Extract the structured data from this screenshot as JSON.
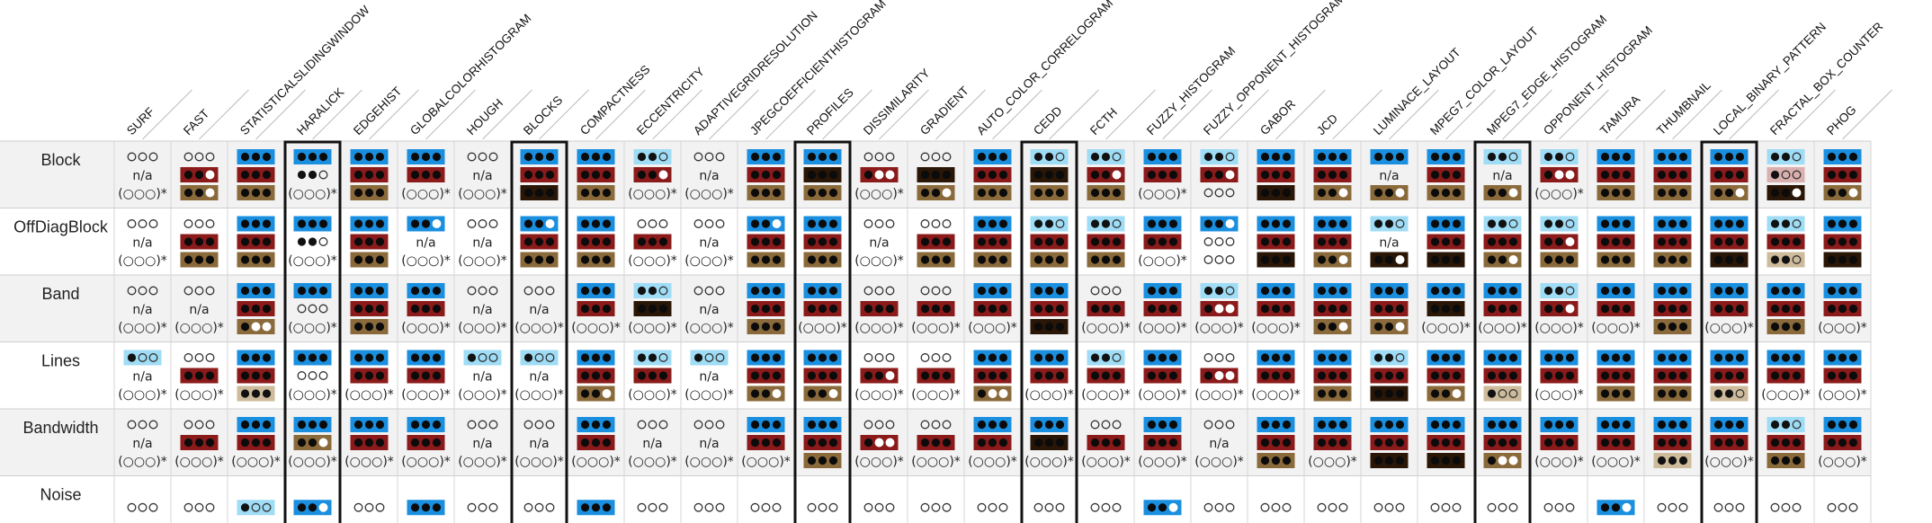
{
  "chart_data": {
    "type": "heatmap",
    "title": "",
    "rows": [
      "Block",
      "OffDiagBlock",
      "Band",
      "Lines",
      "Bandwidth",
      "Noise"
    ],
    "columns": [
      "SURF",
      "FAST",
      "STATISTICALSLIDINGWINDOW",
      "HARALICK",
      "EDGEHIST",
      "GLOBALCOLORHISTOGRAM",
      "HOUGH",
      "BLOCKS",
      "COMPACTNESS",
      "ECCENTRICITY",
      "ADAPTIVEGRIDRESOLUTION",
      "JPEGCOEFFICIENTHISTOGRAM",
      "PROFILES",
      "DISSIMILARITY",
      "GRADIENT",
      "AUTO_COLOR_CORRELOGRAM",
      "CEDD",
      "FCTH",
      "FUZZY_HISTOGRAM",
      "FUZZY_OPPONENT_HISTOGRAM",
      "GABOR",
      "JCD",
      "LUMINACE_LAYOUT",
      "MPEG7_COLOR_LAYOUT",
      "MPEG7_EDGE_HISTOGRAM",
      "OPPONENT_HISTOGRAM",
      "TAMURA",
      "THUMBNAIL",
      "LOCAL_BINARY_PATTERN",
      "FRACTAL_BOX_COUNTER",
      "PHOG"
    ],
    "highlighted_columns": [
      "HARALICK",
      "BLOCKS",
      "PROFILES",
      "CEDD",
      "MPEG7_EDGE_HISTOGRAM",
      "LOCAL_BINARY_PATTERN"
    ],
    "na_label": "n/a",
    "empty_label": "(○○○)*",
    "legend": "none",
    "grid": true,
    "palette": {
      "b": "#1a8fe0",
      "c": "#9fdcf5",
      "r": "#8b1a1a",
      "s": "#d9b0ae",
      "t": "#8a6a3a",
      "u": "#cdbb9b",
      "k": "#2a1606",
      "_": "#f4f4f4"
    },
    "cells": [
      [
        [
          "_3",
          "n",
          "x"
        ],
        [
          "_3",
          "r2",
          "t2"
        ],
        [
          "b3",
          "r3",
          "t3"
        ],
        [
          "b3",
          "_2",
          "x"
        ],
        [
          "b3",
          "r3",
          "t3"
        ],
        [
          "b3",
          "r3",
          "x"
        ],
        [
          "_3",
          "n",
          "x"
        ],
        [
          "b3",
          "r3",
          "k3"
        ],
        [
          "b3",
          "r3",
          "t3"
        ],
        [
          "c2",
          "r2",
          "x"
        ],
        [
          "_3",
          "n",
          "x"
        ],
        [
          "b3",
          "r3",
          "t3"
        ],
        [
          "b3",
          "k3",
          "t3"
        ],
        [
          "_3",
          "r1",
          "x"
        ],
        [
          "_3",
          "k3",
          "t2"
        ],
        [
          "b3",
          "r3",
          "t3"
        ],
        [
          "c2",
          "k3",
          "t3"
        ],
        [
          "c2",
          "r2",
          "t3"
        ],
        [
          "b3",
          "r3",
          "x"
        ],
        [
          "c2",
          "r2",
          "_3"
        ],
        [
          "b3",
          "r3",
          "k3"
        ],
        [
          "b3",
          "r3",
          "t2"
        ],
        [
          "b3",
          "n",
          "t2"
        ],
        [
          "b3",
          "r3",
          "t3"
        ],
        [
          "c2",
          "n",
          "t2"
        ],
        [
          "c2",
          "r1",
          "x"
        ],
        [
          "b3",
          "r3",
          "t3"
        ],
        [
          "b3",
          "r3",
          "t3"
        ],
        [
          "b3",
          "r3",
          "t2"
        ],
        [
          "c2",
          "s1",
          "k2"
        ],
        [
          "b3",
          "r3",
          "t2"
        ]
      ],
      [
        [
          "_3",
          "n",
          "x"
        ],
        [
          "_3",
          "r3",
          "t3"
        ],
        [
          "b3",
          "r3",
          "t3"
        ],
        [
          "b3",
          "_2",
          "x"
        ],
        [
          "b3",
          "r3",
          "t3"
        ],
        [
          "b2",
          "n",
          "x"
        ],
        [
          "_3",
          "n",
          "x"
        ],
        [
          "b2",
          "r3",
          "t3"
        ],
        [
          "b3",
          "r3",
          "t3"
        ],
        [
          "_3",
          "r3",
          "x"
        ],
        [
          "_3",
          "n",
          "x"
        ],
        [
          "b2",
          "r3",
          "t3"
        ],
        [
          "b3",
          "r3",
          "t3"
        ],
        [
          "_3",
          "n",
          "x"
        ],
        [
          "_3",
          "r3",
          "t3"
        ],
        [
          "b3",
          "r3",
          "t3"
        ],
        [
          "c2",
          "r3",
          "t3"
        ],
        [
          "c2",
          "r3",
          "t3"
        ],
        [
          "b3",
          "r3",
          "x"
        ],
        [
          "b2",
          "_3",
          "_3"
        ],
        [
          "b3",
          "r3",
          "k3"
        ],
        [
          "b3",
          "r3",
          "t2"
        ],
        [
          "c2",
          "n",
          "k2"
        ],
        [
          "b3",
          "r3",
          "k3"
        ],
        [
          "c2",
          "r3",
          "t2"
        ],
        [
          "c2",
          "r2",
          "t3"
        ],
        [
          "b3",
          "r3",
          "t3"
        ],
        [
          "b3",
          "r3",
          "t3"
        ],
        [
          "b3",
          "r3",
          "k3"
        ],
        [
          "c2",
          "r3",
          "u2"
        ],
        [
          "b3",
          "r3",
          "k3"
        ]
      ],
      [
        [
          "_3",
          "n",
          "x"
        ],
        [
          "_3",
          "n",
          "x"
        ],
        [
          "b3",
          "r3",
          "t1"
        ],
        [
          "b3",
          "_3",
          "x"
        ],
        [
          "b3",
          "r3",
          "t3"
        ],
        [
          "b3",
          "r3",
          "x"
        ],
        [
          "_3",
          "n",
          "x"
        ],
        [
          "_3",
          "n",
          "x"
        ],
        [
          "b3",
          "r3",
          "x"
        ],
        [
          "c2",
          "k3",
          "x"
        ],
        [
          "_3",
          "n",
          "x"
        ],
        [
          "b3",
          "r3",
          "t3"
        ],
        [
          "b3",
          "r3",
          "x"
        ],
        [
          "_3",
          "r3",
          "x"
        ],
        [
          "_3",
          "r3",
          "x"
        ],
        [
          "b3",
          "r3",
          "x"
        ],
        [
          "b3",
          "r3",
          "k3"
        ],
        [
          "_3",
          "r3",
          "x"
        ],
        [
          "b3",
          "r3",
          "x"
        ],
        [
          "c2",
          "r1",
          "x"
        ],
        [
          "b3",
          "r3",
          "x"
        ],
        [
          "b3",
          "r3",
          "t2"
        ],
        [
          "b3",
          "r3",
          "t2"
        ],
        [
          "b3",
          "k3",
          "x"
        ],
        [
          "b3",
          "r3",
          "x"
        ],
        [
          "c2",
          "r2",
          "x"
        ],
        [
          "b3",
          "r3",
          "x"
        ],
        [
          "b3",
          "r3",
          "t3"
        ],
        [
          "b3",
          "r3",
          "x"
        ],
        [
          "b3",
          "r3",
          "t3"
        ],
        [
          "b3",
          "r3",
          "x"
        ]
      ],
      [
        [
          "c1",
          "n",
          "x"
        ],
        [
          "_3",
          "r3",
          "x"
        ],
        [
          "b3",
          "r3",
          "u3"
        ],
        [
          "b3",
          "_3",
          "x"
        ],
        [
          "b3",
          "r3",
          "x"
        ],
        [
          "b3",
          "r3",
          "x"
        ],
        [
          "c1",
          "n",
          "x"
        ],
        [
          "c1",
          "n",
          "x"
        ],
        [
          "b3",
          "r3",
          "t2"
        ],
        [
          "c2",
          "r3",
          "x"
        ],
        [
          "c1",
          "n",
          "x"
        ],
        [
          "b3",
          "r3",
          "t2"
        ],
        [
          "b3",
          "r3",
          "t2"
        ],
        [
          "_3",
          "r2",
          "x"
        ],
        [
          "_3",
          "r3",
          "x"
        ],
        [
          "b3",
          "r3",
          "t1"
        ],
        [
          "b3",
          "r3",
          "x"
        ],
        [
          "c2",
          "r3",
          "x"
        ],
        [
          "b3",
          "r3",
          "x"
        ],
        [
          "_3",
          "r1",
          "x"
        ],
        [
          "b3",
          "r3",
          "x"
        ],
        [
          "b3",
          "r3",
          "t3"
        ],
        [
          "c2",
          "r3",
          "k3"
        ],
        [
          "b3",
          "r3",
          "t2"
        ],
        [
          "b3",
          "r3",
          "u1"
        ],
        [
          "b3",
          "r3",
          "x"
        ],
        [
          "b3",
          "r3",
          "t3"
        ],
        [
          "b3",
          "r3",
          "t3"
        ],
        [
          "b3",
          "r3",
          "u2"
        ],
        [
          "b3",
          "r3",
          "x"
        ],
        [
          "b3",
          "r3",
          "x"
        ]
      ],
      [
        [
          "_3",
          "n",
          "x"
        ],
        [
          "_3",
          "r3",
          "x"
        ],
        [
          "b3",
          "r3",
          "x"
        ],
        [
          "b3",
          "t2",
          "x"
        ],
        [
          "b3",
          "r3",
          "x"
        ],
        [
          "b3",
          "r3",
          "x"
        ],
        [
          "_3",
          "n",
          "x"
        ],
        [
          "_3",
          "n",
          "x"
        ],
        [
          "b3",
          "r3",
          "x"
        ],
        [
          "_3",
          "n",
          "x"
        ],
        [
          "_3",
          "n",
          "x"
        ],
        [
          "b3",
          "r3",
          "x"
        ],
        [
          "b3",
          "r3",
          "t3"
        ],
        [
          "_3",
          "r1",
          "x"
        ],
        [
          "_3",
          "r3",
          "x"
        ],
        [
          "b3",
          "r3",
          "x"
        ],
        [
          "b3",
          "k3",
          "x"
        ],
        [
          "_3",
          "r3",
          "x"
        ],
        [
          "b3",
          "r3",
          "x"
        ],
        [
          "_3",
          "n",
          "x"
        ],
        [
          "b3",
          "r3",
          "t3"
        ],
        [
          "b3",
          "r3",
          "x"
        ],
        [
          "b3",
          "r3",
          "k3"
        ],
        [
          "b3",
          "r3",
          "k3"
        ],
        [
          "b3",
          "r3",
          "t1"
        ],
        [
          "b3",
          "r3",
          "x"
        ],
        [
          "b3",
          "r3",
          "x"
        ],
        [
          "b3",
          "r3",
          "u3"
        ],
        [
          "b3",
          "r3",
          "x"
        ],
        [
          "c2",
          "r3",
          "t3"
        ],
        [
          "b3",
          "r3",
          "x"
        ]
      ],
      [
        [
          "_3"
        ],
        [
          "_3"
        ],
        [
          "c1"
        ],
        [
          "b2"
        ],
        [
          "_3"
        ],
        [
          "b3"
        ],
        [
          "_3"
        ],
        [
          "_3"
        ],
        [
          "b3"
        ],
        [
          "_3"
        ],
        [
          "_3"
        ],
        [
          "_3"
        ],
        [
          "_3"
        ],
        [
          "_3"
        ],
        [
          "_3"
        ],
        [
          "_3"
        ],
        [
          "_3"
        ],
        [
          "_3"
        ],
        [
          "b2"
        ],
        [
          "_3"
        ],
        [
          "_3"
        ],
        [
          "_3"
        ],
        [
          "_3"
        ],
        [
          "_3"
        ],
        [
          "_3"
        ],
        [
          "_3"
        ],
        [
          "b2"
        ],
        [
          "_3"
        ],
        [
          "_3"
        ],
        [
          "_3"
        ],
        [
          "_3"
        ]
      ]
    ]
  }
}
